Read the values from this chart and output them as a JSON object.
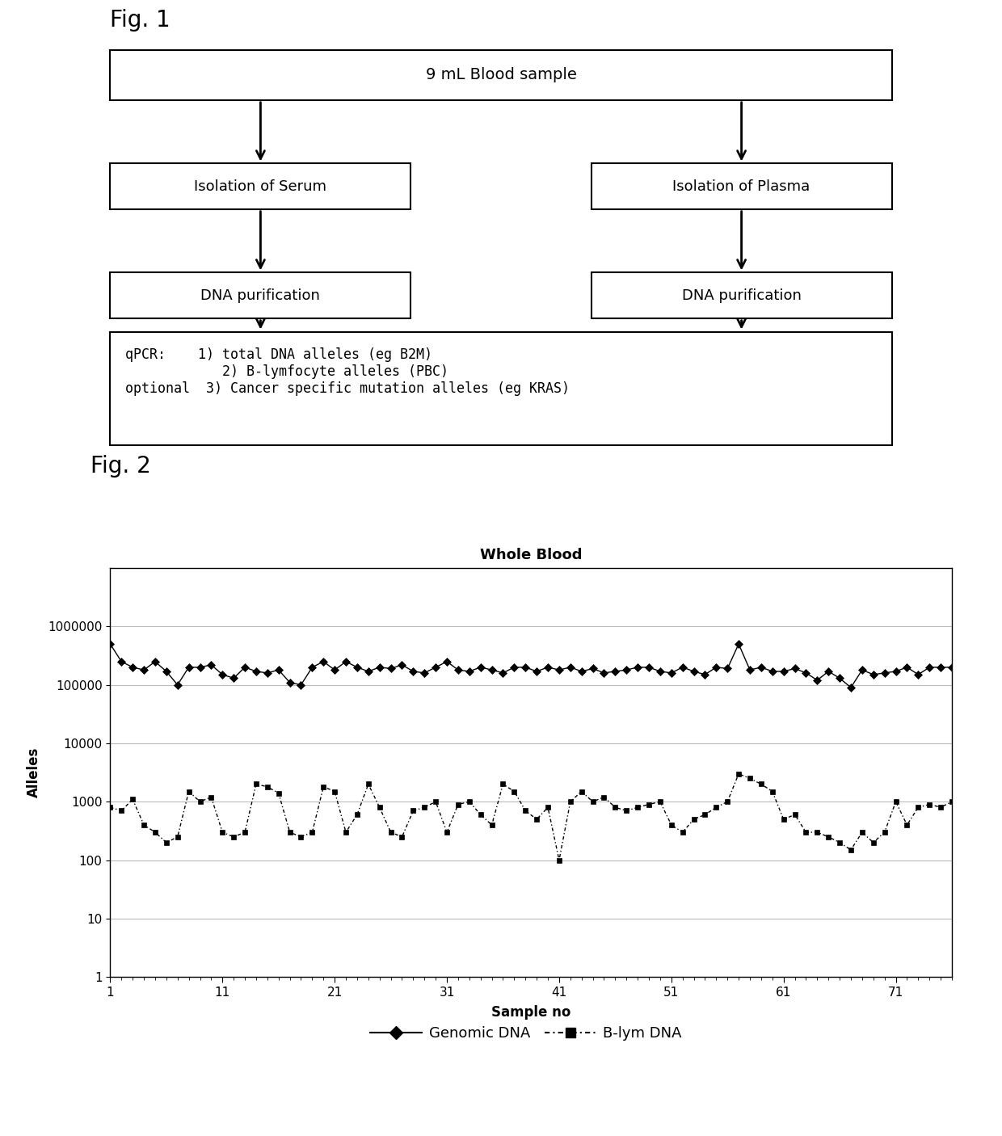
{
  "fig1_title": "Fig. 1",
  "fig2_title": "Fig. 2",
  "box_top": "9 mL Blood sample",
  "box_left1": "Isolation of Serum",
  "box_left2": "DNA purification",
  "box_right1": "Isolation of Plasma",
  "box_right2": "DNA purification",
  "box_bottom_line1": "qPCR:    1) total DNA alleles (eg B2M)",
  "box_bottom_line2": "            2) B-lymfocyte alleles (PBC)",
  "box_bottom_line3": "optional  3) Cancer specific mutation alleles (eg KRAS)",
  "chart_title": "Whole Blood",
  "xlabel": "Sample no",
  "ylabel": "Alleles",
  "xticks": [
    1,
    11,
    21,
    31,
    41,
    51,
    61,
    71
  ],
  "yticks": [
    1,
    10,
    100,
    1000,
    10000,
    100000,
    1000000
  ],
  "ytick_labels": [
    "1",
    "10",
    "100",
    "1000",
    "10000",
    "100000",
    "1000000"
  ],
  "genomic_dna": [
    500000,
    250000,
    200000,
    180000,
    250000,
    170000,
    100000,
    200000,
    200000,
    220000,
    150000,
    130000,
    200000,
    170000,
    160000,
    180000,
    110000,
    100000,
    200000,
    250000,
    180000,
    250000,
    200000,
    170000,
    200000,
    190000,
    220000,
    170000,
    160000,
    200000,
    250000,
    180000,
    170000,
    200000,
    180000,
    160000,
    200000,
    200000,
    170000,
    200000,
    180000,
    200000,
    170000,
    190000,
    160000,
    170000,
    180000,
    200000,
    200000,
    170000,
    160000,
    200000,
    170000,
    150000,
    200000,
    190000,
    500000,
    180000,
    200000,
    170000,
    170000,
    190000,
    160000,
    120000,
    170000,
    130000,
    90000,
    180000,
    150000,
    160000,
    170000,
    200000,
    150000,
    200000,
    200000,
    200000
  ],
  "blym_dna": [
    800,
    700,
    1100,
    400,
    300,
    200,
    250,
    1500,
    1000,
    1200,
    300,
    250,
    300,
    2000,
    1800,
    1400,
    300,
    250,
    300,
    1800,
    1500,
    300,
    600,
    2000,
    800,
    300,
    250,
    700,
    800,
    1000,
    300,
    900,
    1000,
    600,
    400,
    2000,
    1500,
    700,
    500,
    800,
    100,
    1000,
    1500,
    1000,
    1200,
    800,
    700,
    800,
    900,
    1000,
    400,
    300,
    500,
    600,
    800,
    1000,
    3000,
    2500,
    2000,
    1500,
    500,
    600,
    300,
    300,
    250,
    200,
    150,
    300,
    200,
    300,
    1000,
    400,
    800,
    900,
    800,
    1000
  ],
  "background_color": "#ffffff",
  "fig_width": 12.4,
  "fig_height": 14.06
}
